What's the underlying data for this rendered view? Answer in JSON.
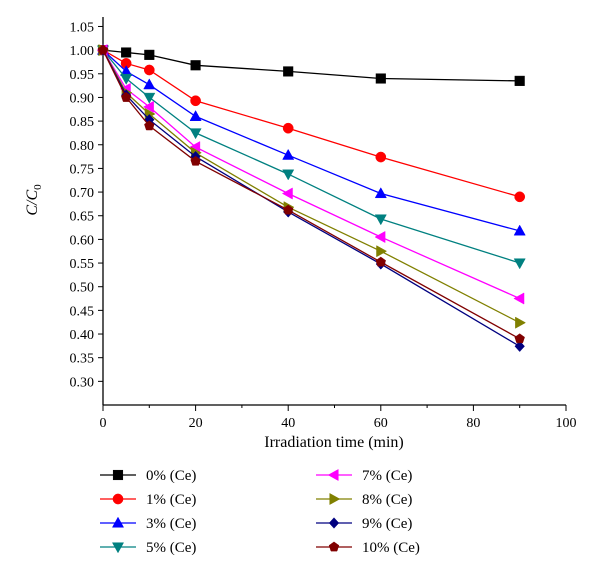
{
  "chart_data": {
    "type": "line",
    "xlabel": "Irradiation time (min)",
    "ylabel": "C/C",
    "ylabel_subscript": "0",
    "xlim": [
      0,
      100
    ],
    "ylim": [
      0.25,
      1.07
    ],
    "x_ticks": [
      "0",
      "20",
      "40",
      "60",
      "80",
      "100"
    ],
    "y_ticks": [
      "0.30",
      "0.35",
      "0.40",
      "0.45",
      "0.50",
      "0.55",
      "0.60",
      "0.65",
      "0.70",
      "0.75",
      "0.80",
      "0.85",
      "0.90",
      "0.95",
      "1.00",
      "1.05"
    ],
    "grid": false,
    "legend_position": "bottom",
    "x": [
      0,
      5,
      10,
      20,
      40,
      60,
      90
    ],
    "series": [
      {
        "name": "0% (Ce)",
        "color": "#000000",
        "marker": "square",
        "values": [
          1.0,
          0.995,
          0.99,
          0.968,
          0.955,
          0.94,
          0.935
        ]
      },
      {
        "name": "1% (Ce)",
        "color": "#ff0000",
        "marker": "circle",
        "values": [
          1.0,
          0.972,
          0.958,
          0.893,
          0.835,
          0.774,
          0.69
        ]
      },
      {
        "name": "3% (Ce)",
        "color": "#0000ff",
        "marker": "triangle-up",
        "values": [
          1.0,
          0.955,
          0.927,
          0.86,
          0.778,
          0.697,
          0.618
        ]
      },
      {
        "name": "5% (Ce)",
        "color": "#008080",
        "marker": "triangle-down",
        "values": [
          1.0,
          0.94,
          0.9,
          0.825,
          0.738,
          0.643,
          0.55
        ]
      },
      {
        "name": "7% (Ce)",
        "color": "#ff00ff",
        "marker": "triangle-left",
        "values": [
          1.0,
          0.918,
          0.88,
          0.795,
          0.697,
          0.605,
          0.475
        ]
      },
      {
        "name": "8% (Ce)",
        "color": "#808000",
        "marker": "triangle-right",
        "values": [
          1.0,
          0.91,
          0.865,
          0.783,
          0.668,
          0.575,
          0.424
        ]
      },
      {
        "name": "9% (Ce)",
        "color": "#000080",
        "marker": "diamond",
        "values": [
          1.0,
          0.905,
          0.853,
          0.775,
          0.658,
          0.548,
          0.374
        ]
      },
      {
        "name": "10% (Ce)",
        "color": "#800000",
        "marker": "pentagon",
        "values": [
          1.0,
          0.9,
          0.84,
          0.765,
          0.662,
          0.552,
          0.39
        ]
      }
    ]
  }
}
